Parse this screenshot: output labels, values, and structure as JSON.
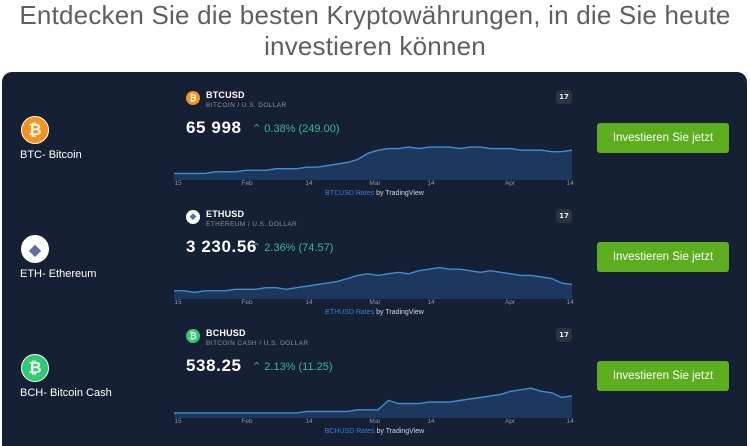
{
  "headline": {
    "line1": "Entdecken Sie die besten Kryptowährungen, in die Sie heute",
    "line2": "investieren können"
  },
  "colors": {
    "panel": "#162034",
    "accent_green": "#5cae1f",
    "positive": "#34b792",
    "line": "#3e8fd3"
  },
  "rows": [
    {
      "coin_name": "BTC- Bitcoin",
      "coin_glyph": "₿",
      "logo_color": "#f7931a",
      "icon": "bitcoin-icon",
      "widget": {
        "symbol": "BTCUSD",
        "full_name": "BITCOIN / U.S. DOLLAR",
        "price": "65 998",
        "change": "⌃ 0.38% (249.00)",
        "attrib_link": "BTCUSD Rates",
        "attrib_rest": " by TradingView",
        "ticks": [
          "15",
          "Feb",
          "14",
          "Mar",
          "14",
          "Apr",
          "14"
        ],
        "series": [
          3,
          3,
          3,
          3,
          4,
          4,
          4,
          5,
          5,
          5,
          6,
          6,
          6,
          7,
          7,
          8,
          9,
          10,
          12,
          16,
          18,
          19,
          19,
          20,
          19,
          20,
          20,
          20,
          19,
          20,
          20,
          19,
          19,
          19,
          18,
          18,
          18,
          17,
          17,
          18
        ]
      },
      "button": "Investieren Sie jetzt"
    },
    {
      "coin_name": "ETH- Ethereum",
      "coin_glyph": "◆",
      "logo_color": "#ffffff",
      "icon": "ethereum-icon",
      "widget": {
        "symbol": "ETHUSD",
        "full_name": "ETHEREUM / U.S. DOLLAR",
        "price": "3 230.56",
        "change": "⌃ 2.36% (74.57)",
        "attrib_link": "ETHUSD Rates",
        "attrib_rest": " by TradingView",
        "ticks": [
          "15",
          "Feb",
          "14",
          "Mar",
          "14",
          "Apr",
          "14"
        ],
        "series": [
          4,
          4,
          3,
          4,
          4,
          4,
          5,
          5,
          5,
          6,
          6,
          5,
          6,
          7,
          8,
          9,
          10,
          12,
          14,
          15,
          14,
          15,
          16,
          15,
          17,
          18,
          19,
          18,
          18,
          17,
          16,
          17,
          16,
          15,
          14,
          14,
          13,
          12,
          9,
          8
        ]
      },
      "button": "Investieren Sie jetzt"
    },
    {
      "coin_name": "BCH- Bitcoin Cash",
      "coin_glyph": "₿",
      "logo_color": "#2ecc71",
      "icon": "bitcoin-cash-icon",
      "widget": {
        "symbol": "BCHUSD",
        "full_name": "BITCOIN CASH / U.S. DOLLAR",
        "price": "538.25",
        "change": "⌃ 2.13% (11.25)",
        "attrib_link": "BCHUSD Rates",
        "attrib_rest": " by TradingView",
        "ticks": [
          "15",
          "Feb",
          "14",
          "Mar",
          "14",
          "Apr",
          "14"
        ],
        "series": [
          2,
          2,
          2,
          2,
          2,
          2,
          2,
          2,
          2,
          2,
          2,
          2,
          2,
          3,
          3,
          3,
          3,
          3,
          4,
          4,
          4,
          10,
          8,
          8,
          8,
          9,
          9,
          9,
          10,
          11,
          12,
          13,
          14,
          16,
          17,
          18,
          16,
          15,
          12,
          13
        ]
      },
      "button": "Investieren Sie jetzt"
    }
  ]
}
